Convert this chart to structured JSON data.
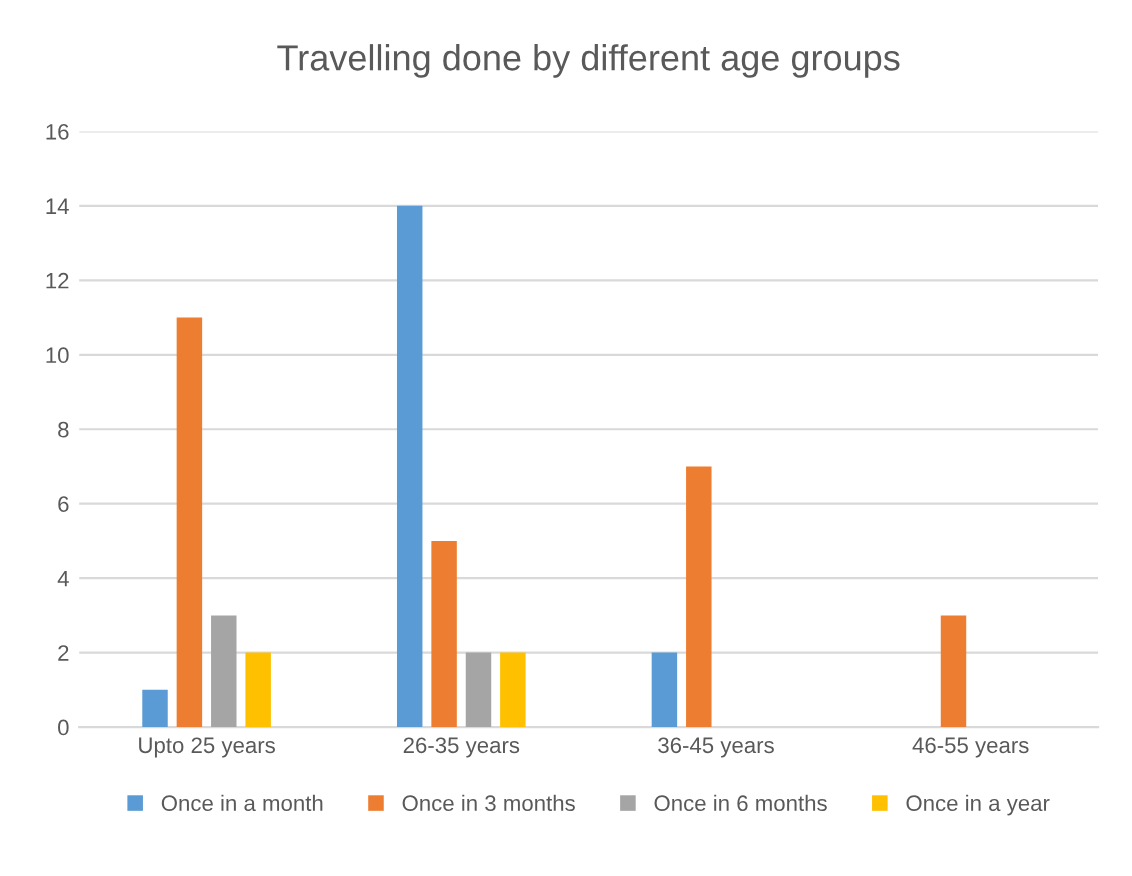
{
  "chart_data": {
    "type": "bar",
    "title": "Travelling done by different age groups",
    "categories": [
      "Upto 25 years",
      "26-35 years",
      "36-45 years",
      "46-55 years"
    ],
    "series": [
      {
        "name": "Once in a month",
        "color": "#5b9bd5",
        "values": [
          1,
          14,
          2,
          0
        ]
      },
      {
        "name": "Once in 3 months",
        "color": "#ed7d31",
        "values": [
          11,
          5,
          7,
          3
        ]
      },
      {
        "name": "Once in 6 months",
        "color": "#a5a5a5",
        "values": [
          3,
          2,
          0,
          0
        ]
      },
      {
        "name": "Once in a year",
        "color": "#ffc000",
        "values": [
          2,
          2,
          0,
          0
        ]
      }
    ],
    "ylim": [
      0,
      16
    ],
    "yticks": [
      0,
      2,
      4,
      6,
      8,
      10,
      12,
      14,
      16
    ],
    "grid": "y",
    "legend": "bottom"
  }
}
